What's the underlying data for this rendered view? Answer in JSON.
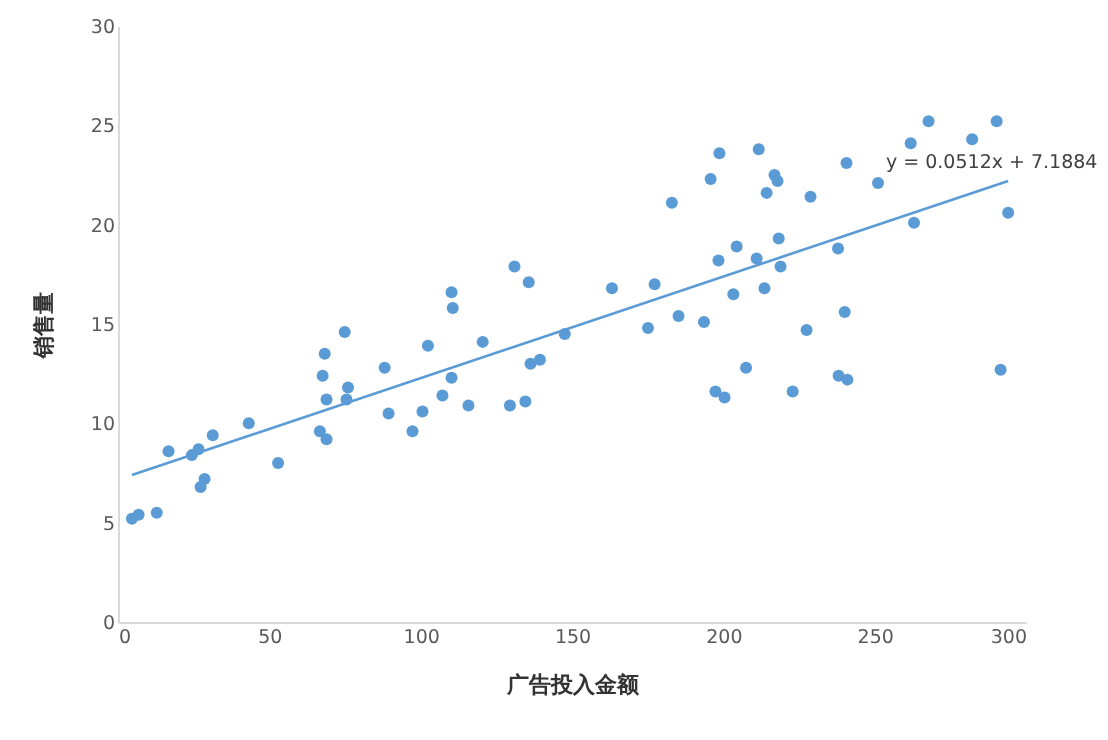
{
  "chart_data": {
    "type": "scatter",
    "xlabel": "广告投入金额",
    "ylabel": "销售量",
    "xlim": [
      0,
      300
    ],
    "ylim": [
      0,
      30
    ],
    "xticks": [
      0,
      50,
      100,
      150,
      200,
      250,
      300
    ],
    "yticks": [
      0,
      5,
      10,
      15,
      20,
      25,
      30
    ],
    "annotations": [
      "y = 0.0512x + 7.1884"
    ],
    "series": [
      {
        "marker": "circle",
        "color": "#5b9bd5",
        "x": [
          4.6,
          6.8,
          12.8,
          16.7,
          24.4,
          26.6,
          28.6,
          27.3,
          31.3,
          43.2,
          52.9,
          66.7,
          68.9,
          67.6,
          68.3,
          68.9,
          74.9,
          76.0,
          75.5,
          88.1,
          89.4,
          97.3,
          100.6,
          102.4,
          107.2,
          110.2,
          115.8,
          110.2,
          110.6,
          120.5,
          129.5,
          134.6,
          131.0,
          135.7,
          136.3,
          139.4,
          147.6,
          163.2,
          177.3,
          183.0,
          175.1,
          185.2,
          193.6,
          195.8,
          198.7,
          198.4,
          197.4,
          200.4,
          211.7,
          216.9,
          217.9,
          214.3,
          228.8,
          240.7,
          251.1,
          261.9,
          267.8,
          282.2,
          290.3,
          294.1,
          263.0,
          237.9,
          218.3,
          204.4,
          211.0,
          218.9,
          203.3,
          213.6,
          240.1,
          227.5,
          207.5,
          222.9,
          238.1,
          241.0,
          291.6
        ],
        "values": [
          5.2,
          5.4,
          5.5,
          8.6,
          8.4,
          8.7,
          7.2,
          6.8,
          9.4,
          10.0,
          8.0,
          9.6,
          9.2,
          12.4,
          13.5,
          11.2,
          14.6,
          11.8,
          11.2,
          12.8,
          10.5,
          9.6,
          10.6,
          13.9,
          11.4,
          12.3,
          10.9,
          16.6,
          15.8,
          14.1,
          10.9,
          11.1,
          17.9,
          17.1,
          13.0,
          13.2,
          14.5,
          16.8,
          17.0,
          21.1,
          14.8,
          15.4,
          15.1,
          22.3,
          23.6,
          18.2,
          11.6,
          11.3,
          23.8,
          22.5,
          22.2,
          21.6,
          21.4,
          23.1,
          22.1,
          24.1,
          25.2,
          24.3,
          25.2,
          20.6,
          20.1,
          18.8,
          19.3,
          18.9,
          18.3,
          17.9,
          16.5,
          16.8,
          15.6,
          14.7,
          12.8,
          11.6,
          12.4,
          12.2,
          12.7
        ]
      },
      {
        "type": "line",
        "color": "#5b9bd5",
        "x": [
          4.6,
          294.1
        ],
        "values": [
          7.4,
          22.2
        ]
      }
    ]
  }
}
